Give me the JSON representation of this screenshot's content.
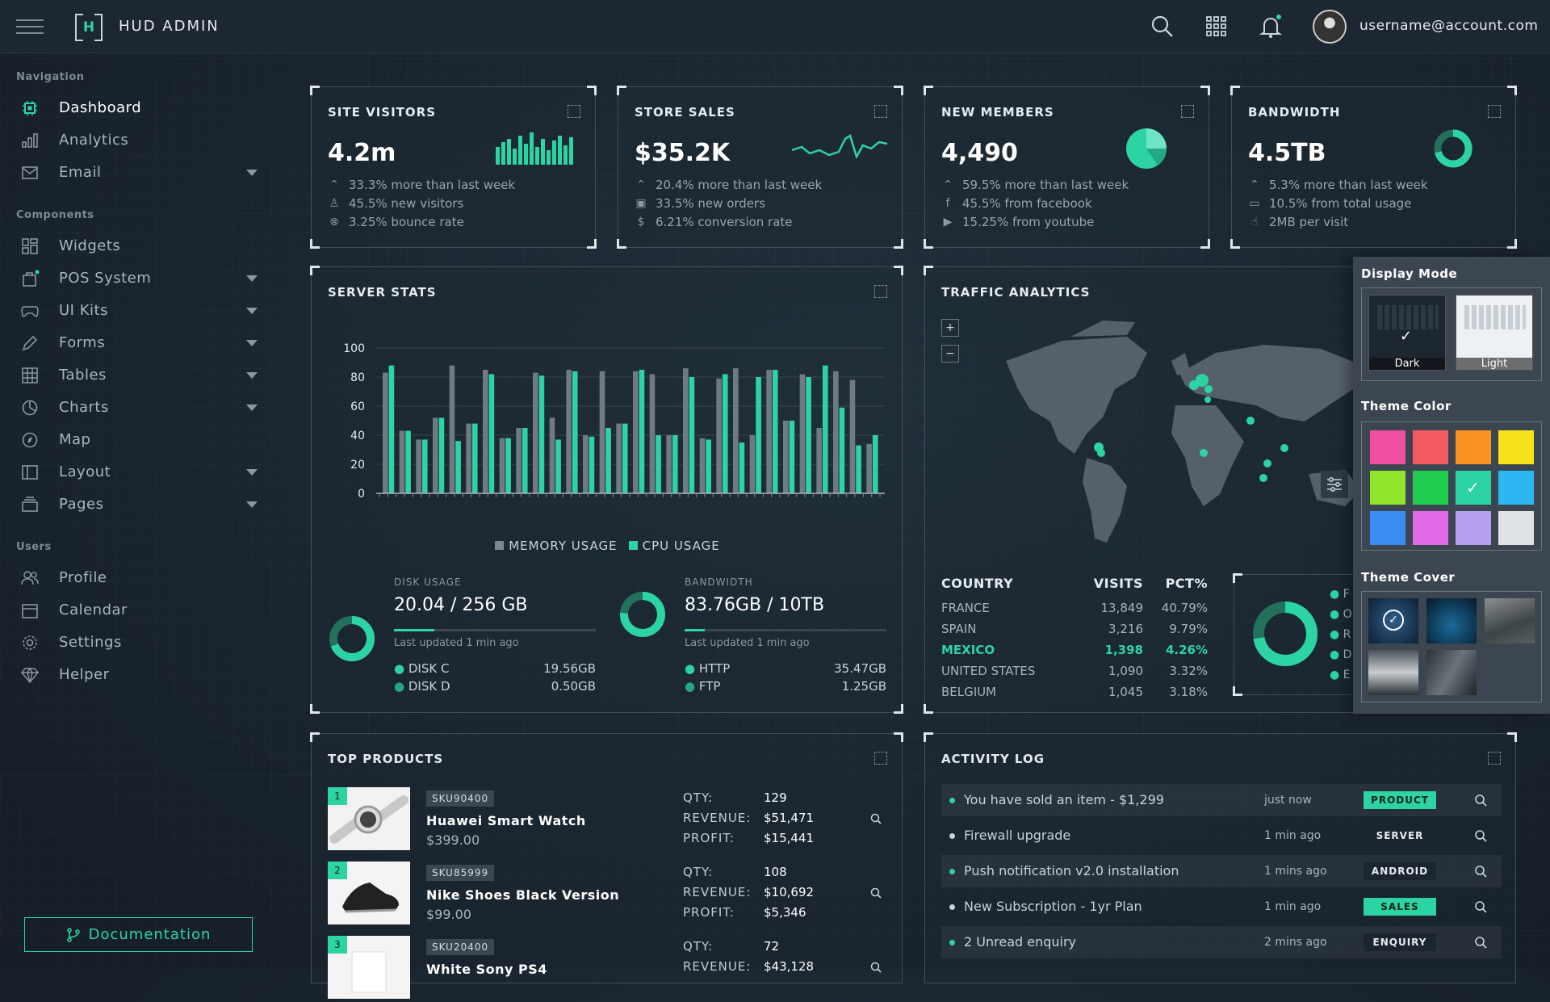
{
  "app": {
    "brand": "HUD ADMIN",
    "logo_letter": "H",
    "username": "username@account.com"
  },
  "nav": {
    "sections": [
      "Navigation",
      "Components",
      "Users"
    ],
    "items": [
      {
        "label": "Dashboard",
        "icon": "cpu-icon"
      },
      {
        "label": "Analytics",
        "icon": "bar-chart-icon"
      },
      {
        "label": "Email",
        "icon": "envelope-icon"
      },
      {
        "label": "Widgets",
        "icon": "widgets-icon"
      },
      {
        "label": "POS System",
        "icon": "bag-icon"
      },
      {
        "label": "UI Kits",
        "icon": "gamepad-icon"
      },
      {
        "label": "Forms",
        "icon": "pen-icon"
      },
      {
        "label": "Tables",
        "icon": "table-icon"
      },
      {
        "label": "Charts",
        "icon": "pie-icon"
      },
      {
        "label": "Map",
        "icon": "compass-icon"
      },
      {
        "label": "Layout",
        "icon": "layout-icon"
      },
      {
        "label": "Pages",
        "icon": "pages-icon"
      },
      {
        "label": "Profile",
        "icon": "people-icon"
      },
      {
        "label": "Calendar",
        "icon": "calendar-icon"
      },
      {
        "label": "Settings",
        "icon": "gear-icon"
      },
      {
        "label": "Helper",
        "icon": "gem-icon"
      }
    ],
    "documentation": "Documentation"
  },
  "kpis": [
    {
      "title": "SITE VISITORS",
      "value": "4.2m",
      "lines": [
        "33.3% more than last week",
        "45.5% new visitors",
        "3.25% bounce rate"
      ]
    },
    {
      "title": "STORE SALES",
      "value": "$35.2K",
      "lines": [
        "20.4% more than last week",
        "33.5% new orders",
        "6.21% conversion rate"
      ]
    },
    {
      "title": "NEW MEMBERS",
      "value": "4,490",
      "lines": [
        "59.5% more than last week",
        "45.5% from facebook",
        "15.25% from youtube"
      ]
    },
    {
      "title": "BANDWIDTH",
      "value": "4.5TB",
      "lines": [
        "5.3% more than last week",
        "10.5% from total usage",
        "2MB per visit"
      ]
    }
  ],
  "server": {
    "title": "SERVER STATS",
    "legend": [
      "MEMORY USAGE",
      "CPU USAGE"
    ],
    "disk": {
      "label": "DISK USAGE",
      "value": "20.04 / 256 GB",
      "updated": "Last updated 1 min ago",
      "rows": [
        [
          "DISK C",
          "19.56GB"
        ],
        [
          "DISK D",
          "0.50GB"
        ]
      ]
    },
    "bandwidth": {
      "label": "BANDWIDTH",
      "value": "83.76GB / 10TB",
      "updated": "Last updated 1 min ago",
      "rows": [
        [
          "HTTP",
          "35.47GB"
        ],
        [
          "FTP",
          "1.25GB"
        ]
      ]
    }
  },
  "chart_data": {
    "type": "bar",
    "title": "SERVER STATS",
    "ylim": [
      0,
      100
    ],
    "yticks": [
      0,
      20,
      40,
      60,
      80,
      100
    ],
    "series": [
      {
        "name": "MEMORY USAGE",
        "values": [
          83,
          43,
          37,
          52,
          88,
          48,
          85,
          38,
          45,
          83,
          52,
          85,
          40,
          84,
          48,
          84,
          82,
          40,
          86,
          38,
          79,
          86,
          40,
          85,
          50,
          82,
          45,
          84,
          78,
          34
        ]
      },
      {
        "name": "CPU USAGE",
        "values": [
          88,
          43,
          37,
          52,
          36,
          48,
          82,
          38,
          45,
          81,
          37,
          84,
          39,
          45,
          48,
          85,
          40,
          40,
          80,
          37,
          82,
          35,
          80,
          85,
          50,
          80,
          88,
          59,
          33,
          40
        ]
      }
    ]
  },
  "traffic": {
    "title": "TRAFFIC ANALYTICS",
    "headers": [
      "COUNTRY",
      "VISITS",
      "PCT%"
    ],
    "rows": [
      [
        "FRANCE",
        "13,849",
        "40.79%"
      ],
      [
        "SPAIN",
        "3,216",
        "9.79%"
      ],
      [
        "MEXICO",
        "1,398",
        "4.26%"
      ],
      [
        "UNITED STATES",
        "1,090",
        "3.32%"
      ],
      [
        "BELGIUM",
        "1,045",
        "3.18%"
      ]
    ],
    "highlight_row": 2,
    "zoom_in": "+",
    "zoom_out": "−",
    "legend_initials": [
      "F",
      "O",
      "R",
      "D",
      "E"
    ]
  },
  "products": {
    "title": "TOP PRODUCTS",
    "items": [
      {
        "rank": "1",
        "sku": "SKU90400",
        "name": "Huawei Smart Watch",
        "price": "$399.00",
        "qty": "129",
        "revenue": "$51,471",
        "profit": "$15,441"
      },
      {
        "rank": "2",
        "sku": "SKU85999",
        "name": "Nike Shoes Black Version",
        "price": "$99.00",
        "qty": "108",
        "revenue": "$10,692",
        "profit": "$5,346"
      },
      {
        "rank": "3",
        "sku": "SKU20400",
        "name": "White Sony PS4",
        "price": "",
        "qty": "72",
        "revenue": "$43,128",
        "profit": ""
      }
    ],
    "labels": {
      "qty": "QTY:",
      "revenue": "REVENUE:",
      "profit": "PROFIT:"
    }
  },
  "activity": {
    "title": "ACTIVITY LOG",
    "items": [
      {
        "text": "You have sold an item - $1,299",
        "time": "just now",
        "badge": "PRODUCT",
        "badge_color": "#2dd4a3"
      },
      {
        "text": "Firewall upgrade",
        "time": "1 min ago",
        "badge": "SERVER",
        "badge_color": "#1b2530"
      },
      {
        "text": "Push notification v2.0 installation",
        "time": "1 mins ago",
        "badge": "ANDROID",
        "badge_color": "#1b2530"
      },
      {
        "text": "New Subscription - 1yr Plan",
        "time": "1 min ago",
        "badge": "SALES",
        "badge_color": "#2dd4a3"
      },
      {
        "text": "2 Unread enquiry",
        "time": "2 mins ago",
        "badge": "ENQUIRY",
        "badge_color": "#1b2530"
      }
    ]
  },
  "settings_panel": {
    "display_mode": "Display Mode",
    "modes": [
      "Dark",
      "Light"
    ],
    "theme_color": "Theme Color",
    "colors": [
      "#ef4fa0",
      "#f25a5f",
      "#f7931e",
      "#f5e21a",
      "#8fe62d",
      "#1fcc4f",
      "#2dd4a3",
      "#2bb8f2",
      "#3a8cf2",
      "#e06ae8",
      "#b5a0f0",
      "#dfe3e6"
    ],
    "selected_color": 6,
    "theme_cover": "Theme Cover"
  },
  "accent": "#2dd4a3"
}
